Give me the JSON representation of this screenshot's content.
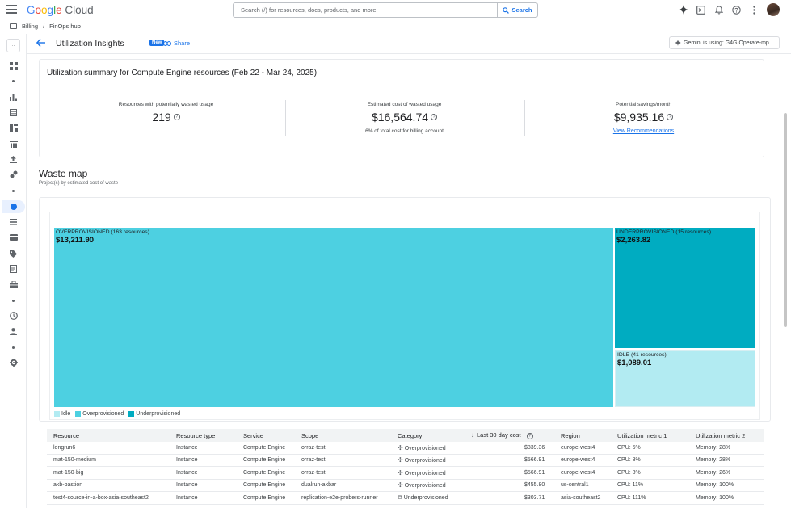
{
  "topbar": {
    "logo_letters": [
      "G",
      "o",
      "o",
      "g",
      "l",
      "e"
    ],
    "logo_cloud": "Cloud",
    "search_placeholder": "Search (/) for resources, docs, products, and more",
    "search_button": "Search"
  },
  "breadcrumb": {
    "billing": "Billing",
    "separator": "/",
    "finops": "FinOps hub"
  },
  "header": {
    "title": "Utilization Insights",
    "badge": "New",
    "share": "Share",
    "gemini": "Gemini is using: G4G Operate-mp"
  },
  "summary": {
    "title": "Utilization summary for Compute Engine resources (Feb 22 - Mar 24, 2025)",
    "metrics": [
      {
        "label": "Resources with potentially wasted usage",
        "value": "219"
      },
      {
        "label": "Estimated cost of wasted usage",
        "value": "$16,564.74",
        "sub": "6% of total cost for billing account"
      },
      {
        "label": "Potential savings/month",
        "value": "$9,935.16",
        "link": "View Recommendations"
      }
    ]
  },
  "waste_map": {
    "title": "Waste map",
    "subtitle": "Project(s) by estimated cost of waste",
    "tiles": [
      {
        "label": "OVERPROVISIONED (163 resources)",
        "value": "$13,211.90",
        "color": "#4dd0e1"
      },
      {
        "label": "UNDERPROVISIONED (15 resources)",
        "value": "$2,263.82",
        "color": "#00acc1"
      },
      {
        "label": "IDLE (41 resources)",
        "value": "$1,089.01",
        "color": "#b2ebf2"
      }
    ],
    "legend": [
      {
        "label": "Idle",
        "color": "#b2ebf2"
      },
      {
        "label": "Overprovisioned",
        "color": "#4dd0e1"
      },
      {
        "label": "Underprovisioned",
        "color": "#00acc1"
      }
    ]
  },
  "table": {
    "columns": [
      "Resource",
      "Resource type",
      "Service",
      "Scope",
      "Category",
      "Last 30 day cost",
      "Region",
      "Utilization metric 1",
      "Utilization metric 2"
    ],
    "rows": [
      [
        "longrun6",
        "Instance",
        "Compute Engine",
        "orraz-test",
        "Overprovisioned",
        "$839.36",
        "europe-west4",
        "CPU: 5%",
        "Memory: 28%"
      ],
      [
        "mat-150-medium",
        "Instance",
        "Compute Engine",
        "orraz-test",
        "Overprovisioned",
        "$566.91",
        "europe-west4",
        "CPU: 8%",
        "Memory: 28%"
      ],
      [
        "mat-150-big",
        "Instance",
        "Compute Engine",
        "orraz-test",
        "Overprovisioned",
        "$566.91",
        "europe-west4",
        "CPU: 8%",
        "Memory: 26%"
      ],
      [
        "akb-bastion",
        "Instance",
        "Compute Engine",
        "dualrun-akbar",
        "Overprovisioned",
        "$455.80",
        "us-central1",
        "CPU: 11%",
        "Memory: 100%"
      ],
      [
        "test4-source-in-a-box-asia-southeast2",
        "Instance",
        "Compute Engine",
        "replication-e2e-probers-runner",
        "Underprovisioned",
        "$303.71",
        "asia-southeast2",
        "CPU: 111%",
        "Memory: 100%"
      ]
    ]
  }
}
